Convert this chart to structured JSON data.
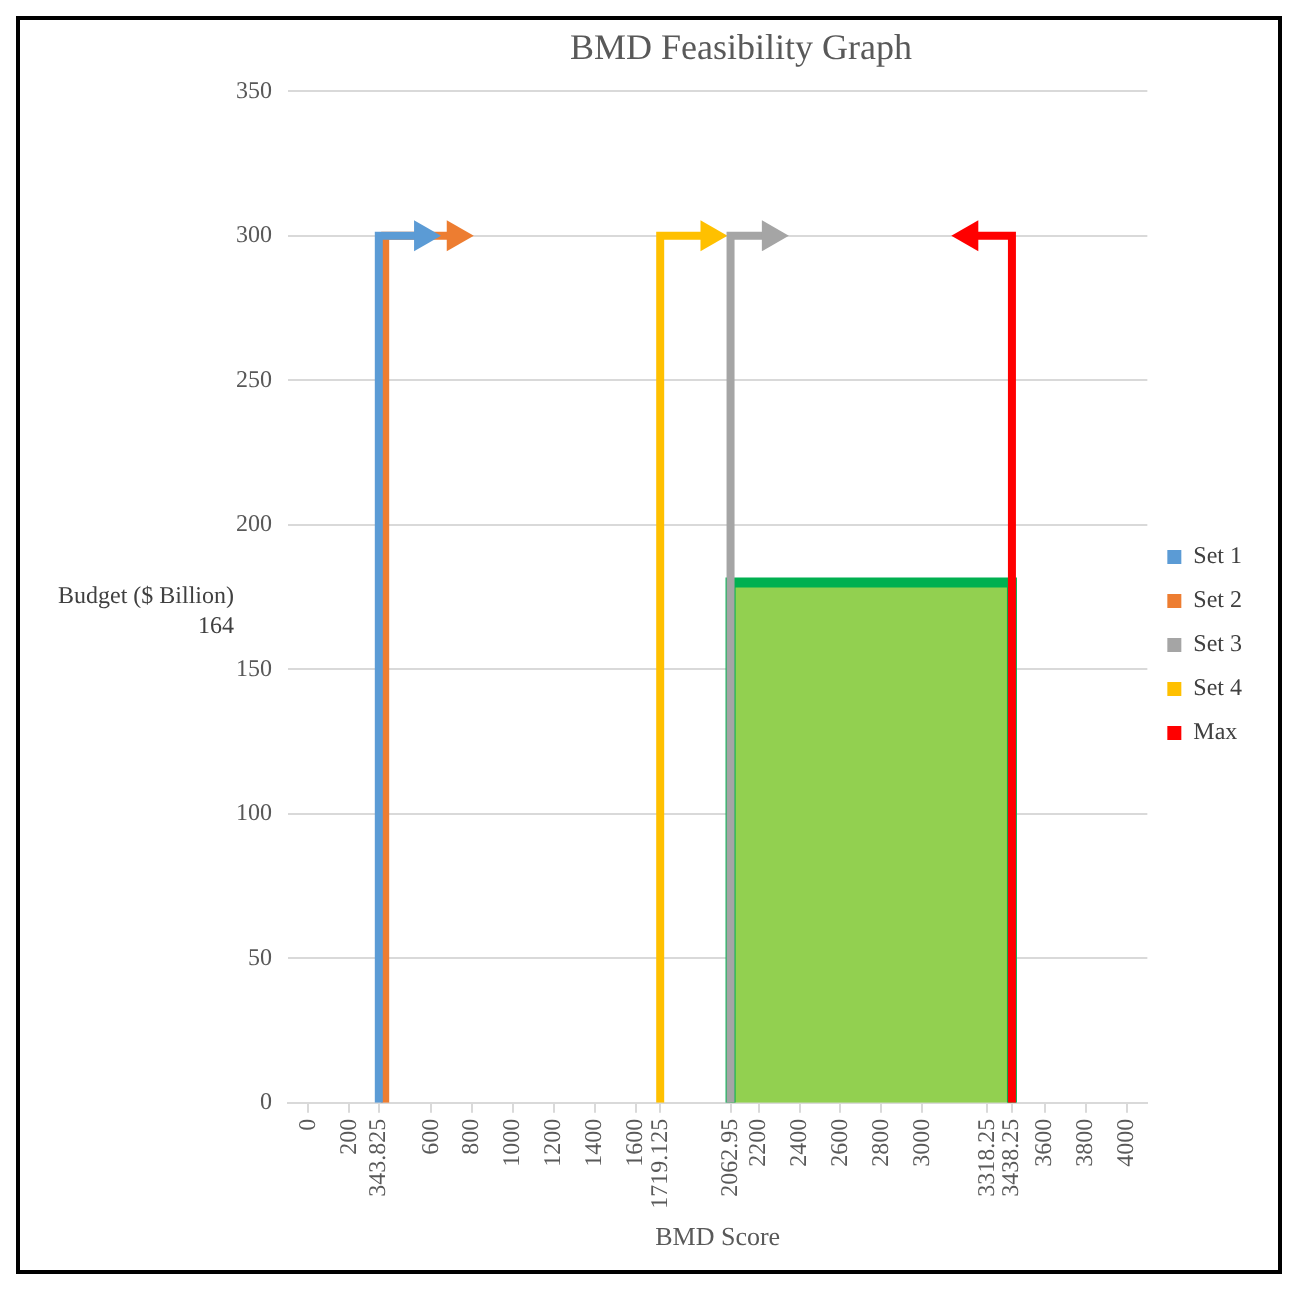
{
  "chart_data": {
    "type": "line",
    "title": "BMD Feasibility Graph",
    "xlabel": "BMD Score",
    "ylabel": "Budget ($ Billion)",
    "annotations": [
      "164"
    ],
    "xlim": [
      -100,
      4100
    ],
    "xticks": [
      0,
      200,
      343.825,
      600,
      800,
      1000,
      1200,
      1400,
      1600,
      1719.125,
      2062.95,
      2200,
      2400,
      2600,
      2800,
      3000,
      3318.25,
      3438.25,
      3600,
      3800,
      4000
    ],
    "ylim": [
      0,
      350
    ],
    "yticks": [
      0,
      50,
      100,
      150,
      200,
      250,
      300,
      350
    ],
    "grid": "y",
    "legend": "right",
    "series": [
      {
        "type": "area",
        "color": "#92d050",
        "x": [
          2062.95,
          2062.95,
          3438.25,
          3438.25
        ],
        "values": [
          0,
          180,
          180,
          0
        ]
      },
      {
        "name": "Set 1",
        "color": "#5b9bd5",
        "x": [
          343.825,
          343.825,
          560
        ],
        "values": [
          0,
          300,
          300
        ]
      },
      {
        "name": "Set 2",
        "color": "#ed7d31",
        "x": [
          375,
          375,
          720
        ],
        "values": [
          0,
          300,
          300
        ]
      },
      {
        "name": "Set 3",
        "color": "#a5a5a5",
        "x": [
          2062.95,
          2062.95,
          2260
        ],
        "values": [
          0,
          300,
          300
        ]
      },
      {
        "name": "Set 4",
        "color": "#ffc000",
        "x": [
          1719.125,
          1719.125,
          1960
        ],
        "values": [
          0,
          300,
          300
        ]
      },
      {
        "name": "Max",
        "color": "#ff0000",
        "x": [
          3438.25,
          3438.25,
          3230
        ],
        "values": [
          0,
          300,
          300
        ]
      }
    ]
  }
}
